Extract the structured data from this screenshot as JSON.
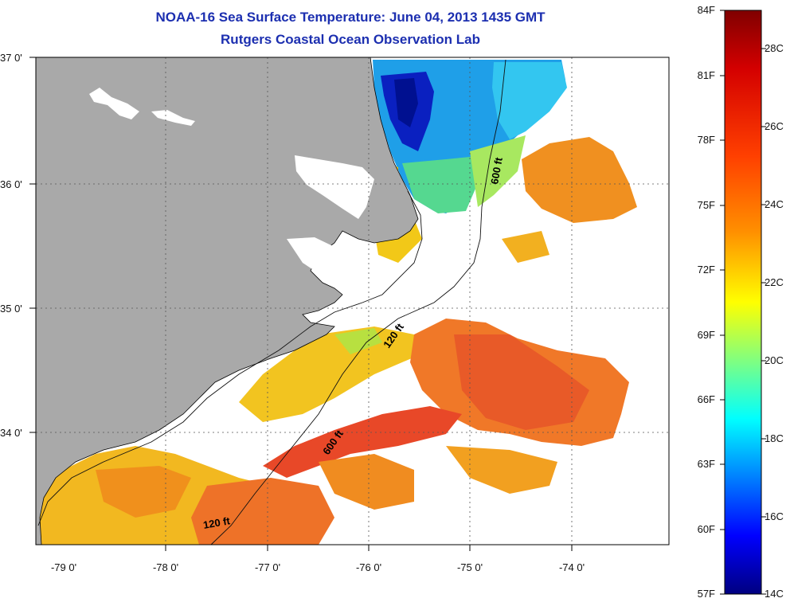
{
  "title": {
    "line1": "NOAA-16 Sea Surface Temperature:  June 04, 2013 1435 GMT",
    "line2": "Rutgers Coastal Ocean Observation Lab"
  },
  "axes": {
    "latitude_labels": [
      "37 0'",
      "36 0'",
      "35 0'",
      "34 0'"
    ],
    "longitude_labels": [
      "-79 0'",
      "-78 0'",
      "-77 0'",
      "-76 0'",
      "-75 0'",
      "-74 0'"
    ]
  },
  "isobaths": {
    "label_120_upper": "120 ft",
    "label_120_lower": "120 ft",
    "label_600_upper": "600 ft",
    "label_600_lower": "600 ft"
  },
  "colorbar": {
    "fahrenheit": [
      "84F",
      "81F",
      "78F",
      "75F",
      "72F",
      "69F",
      "66F",
      "63F",
      "60F",
      "57F"
    ],
    "celsius": [
      "28C",
      "26C",
      "24C",
      "22C",
      "20C",
      "18C",
      "16C",
      "14C"
    ],
    "colors": [
      "#800000",
      "#ff0000",
      "#ff8000",
      "#ffff00",
      "#80ff80",
      "#00ffff",
      "#0080ff",
      "#0000ff",
      "#000080"
    ]
  },
  "colors": {
    "land": "#a9a9a9",
    "water_nodata": "#ffffff",
    "title": "#1c2fb0"
  }
}
